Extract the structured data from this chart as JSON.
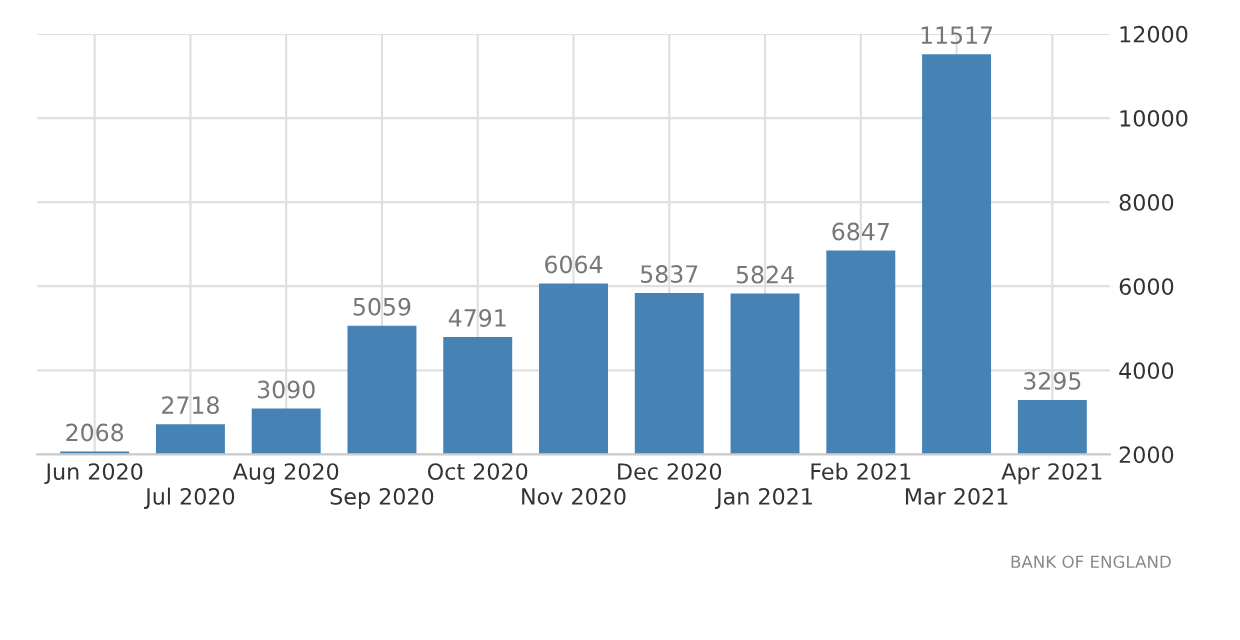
{
  "chart_data": {
    "type": "bar",
    "categories": [
      "Jun 2020",
      "Jul 2020",
      "Aug 2020",
      "Sep 2020",
      "Oct 2020",
      "Nov 2020",
      "Dec 2020",
      "Jan 2021",
      "Feb 2021",
      "Mar 2021",
      "Apr 2021"
    ],
    "values": [
      2068,
      2718,
      3090,
      5059,
      4791,
      6064,
      5837,
      5824,
      6847,
      11517,
      3295
    ],
    "color": "#4682b4",
    "ylim": [
      2000,
      12000
    ],
    "yticks": [
      2000,
      4000,
      6000,
      8000,
      10000,
      12000
    ],
    "grid": true,
    "data_labels": true,
    "annotations": [
      "BANK OF ENGLAND"
    ]
  }
}
